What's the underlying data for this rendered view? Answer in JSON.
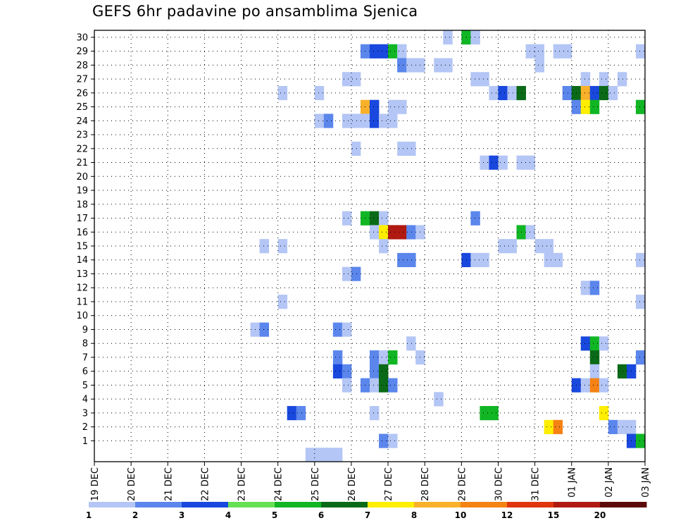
{
  "chart_data": {
    "type": "heatmap",
    "title": "GEFS 6hr padavine po ansamblima Sjenica",
    "xlabel": "",
    "ylabel": "",
    "ylim": [
      0.5,
      30.5
    ],
    "y_ticks": [
      1,
      2,
      3,
      4,
      5,
      6,
      7,
      8,
      9,
      10,
      11,
      12,
      13,
      14,
      15,
      16,
      17,
      18,
      19,
      20,
      21,
      22,
      23,
      24,
      25,
      26,
      27,
      28,
      29,
      30
    ],
    "x_ticks": [
      "19 DEC",
      "20 DEC",
      "21 DEC",
      "22 DEC",
      "23 DEC",
      "24 DEC",
      "25 DEC",
      "26 DEC",
      "27 DEC",
      "28 DEC",
      "29 DEC",
      "30 DEC",
      "31 DEC",
      "01 JAN",
      "02 JAN",
      "03 JAN"
    ],
    "time_steps": 60,
    "steps_per_day": 4,
    "grid": "dotted",
    "colorbar": {
      "labels": [
        "1",
        "2",
        "3",
        "4",
        "5",
        "6",
        "7",
        "8",
        "10",
        "12",
        "15",
        "20"
      ],
      "colors": [
        "#b4c6f5",
        "#5b86ec",
        "#1948de",
        "#68e056",
        "#10b624",
        "#0b6a17",
        "#ffee00",
        "#f9b12a",
        "#f58214",
        "#e0350f",
        "#b01a10",
        "#5c0909"
      ]
    },
    "cells": [
      {
        "member": 30,
        "step": 38,
        "level": 1
      },
      {
        "member": 30,
        "step": 40,
        "level": 5
      },
      {
        "member": 30,
        "step": 41,
        "level": 1
      },
      {
        "member": 29,
        "step": 29,
        "level": 2
      },
      {
        "member": 29,
        "step": 30,
        "level": 3
      },
      {
        "member": 29,
        "step": 31,
        "level": 3
      },
      {
        "member": 29,
        "step": 32,
        "level": 5
      },
      {
        "member": 29,
        "step": 33,
        "level": 1
      },
      {
        "member": 29,
        "step": 47,
        "level": 1
      },
      {
        "member": 29,
        "step": 48,
        "level": 1
      },
      {
        "member": 29,
        "step": 50,
        "level": 1
      },
      {
        "member": 29,
        "step": 51,
        "level": 1
      },
      {
        "member": 29,
        "step": 59,
        "level": 1
      },
      {
        "member": 28,
        "step": 33,
        "level": 2
      },
      {
        "member": 28,
        "step": 34,
        "level": 1
      },
      {
        "member": 28,
        "step": 35,
        "level": 1
      },
      {
        "member": 28,
        "step": 37,
        "level": 1
      },
      {
        "member": 28,
        "step": 38,
        "level": 1
      },
      {
        "member": 28,
        "step": 48,
        "level": 1
      },
      {
        "member": 27,
        "step": 27,
        "level": 1
      },
      {
        "member": 27,
        "step": 28,
        "level": 1
      },
      {
        "member": 27,
        "step": 41,
        "level": 1
      },
      {
        "member": 27,
        "step": 42,
        "level": 1
      },
      {
        "member": 27,
        "step": 53,
        "level": 1
      },
      {
        "member": 27,
        "step": 55,
        "level": 1
      },
      {
        "member": 27,
        "step": 57,
        "level": 1
      },
      {
        "member": 26,
        "step": 20,
        "level": 1
      },
      {
        "member": 26,
        "step": 24,
        "level": 1
      },
      {
        "member": 26,
        "step": 43,
        "level": 1
      },
      {
        "member": 26,
        "step": 44,
        "level": 3
      },
      {
        "member": 26,
        "step": 45,
        "level": 1
      },
      {
        "member": 26,
        "step": 46,
        "level": 6
      },
      {
        "member": 26,
        "step": 51,
        "level": 2
      },
      {
        "member": 26,
        "step": 52,
        "level": 6
      },
      {
        "member": 26,
        "step": 53,
        "level": 8
      },
      {
        "member": 26,
        "step": 54,
        "level": 3
      },
      {
        "member": 26,
        "step": 55,
        "level": 6
      },
      {
        "member": 26,
        "step": 56,
        "level": 1
      },
      {
        "member": 25,
        "step": 29,
        "level": 8
      },
      {
        "member": 25,
        "step": 30,
        "level": 3
      },
      {
        "member": 25,
        "step": 32,
        "level": 1
      },
      {
        "member": 25,
        "step": 33,
        "level": 1
      },
      {
        "member": 25,
        "step": 52,
        "level": 2
      },
      {
        "member": 25,
        "step": 53,
        "level": 7
      },
      {
        "member": 25,
        "step": 54,
        "level": 5
      },
      {
        "member": 25,
        "step": 59,
        "level": 5
      },
      {
        "member": 24,
        "step": 24,
        "level": 1
      },
      {
        "member": 24,
        "step": 25,
        "level": 2
      },
      {
        "member": 24,
        "step": 27,
        "level": 1
      },
      {
        "member": 24,
        "step": 28,
        "level": 1
      },
      {
        "member": 24,
        "step": 29,
        "level": 1
      },
      {
        "member": 24,
        "step": 30,
        "level": 3
      },
      {
        "member": 24,
        "step": 31,
        "level": 1
      },
      {
        "member": 24,
        "step": 32,
        "level": 1
      },
      {
        "member": 22,
        "step": 28,
        "level": 1
      },
      {
        "member": 22,
        "step": 33,
        "level": 1
      },
      {
        "member": 22,
        "step": 34,
        "level": 1
      },
      {
        "member": 21,
        "step": 42,
        "level": 1
      },
      {
        "member": 21,
        "step": 43,
        "level": 3
      },
      {
        "member": 21,
        "step": 44,
        "level": 1
      },
      {
        "member": 21,
        "step": 46,
        "level": 1
      },
      {
        "member": 21,
        "step": 47,
        "level": 1
      },
      {
        "member": 17,
        "step": 27,
        "level": 1
      },
      {
        "member": 17,
        "step": 29,
        "level": 5
      },
      {
        "member": 17,
        "step": 30,
        "level": 6
      },
      {
        "member": 17,
        "step": 31,
        "level": 1
      },
      {
        "member": 17,
        "step": 41,
        "level": 2
      },
      {
        "member": 16,
        "step": 30,
        "level": 1
      },
      {
        "member": 16,
        "step": 31,
        "level": 7
      },
      {
        "member": 16,
        "step": 32,
        "level": 11
      },
      {
        "member": 16,
        "step": 33,
        "level": 11
      },
      {
        "member": 16,
        "step": 34,
        "level": 2
      },
      {
        "member": 16,
        "step": 35,
        "level": 1
      },
      {
        "member": 16,
        "step": 46,
        "level": 5
      },
      {
        "member": 16,
        "step": 47,
        "level": 1
      },
      {
        "member": 15,
        "step": 18,
        "level": 1
      },
      {
        "member": 15,
        "step": 20,
        "level": 1
      },
      {
        "member": 15,
        "step": 31,
        "level": 1
      },
      {
        "member": 15,
        "step": 44,
        "level": 1
      },
      {
        "member": 15,
        "step": 45,
        "level": 1
      },
      {
        "member": 15,
        "step": 48,
        "level": 1
      },
      {
        "member": 15,
        "step": 49,
        "level": 1
      },
      {
        "member": 14,
        "step": 33,
        "level": 2
      },
      {
        "member": 14,
        "step": 34,
        "level": 2
      },
      {
        "member": 14,
        "step": 40,
        "level": 3
      },
      {
        "member": 14,
        "step": 41,
        "level": 1
      },
      {
        "member": 14,
        "step": 42,
        "level": 1
      },
      {
        "member": 14,
        "step": 49,
        "level": 1
      },
      {
        "member": 14,
        "step": 50,
        "level": 1
      },
      {
        "member": 14,
        "step": 59,
        "level": 1
      },
      {
        "member": 13,
        "step": 27,
        "level": 1
      },
      {
        "member": 13,
        "step": 28,
        "level": 2
      },
      {
        "member": 12,
        "step": 53,
        "level": 1
      },
      {
        "member": 12,
        "step": 54,
        "level": 2
      },
      {
        "member": 11,
        "step": 20,
        "level": 1
      },
      {
        "member": 11,
        "step": 59,
        "level": 1
      },
      {
        "member": 9,
        "step": 17,
        "level": 1
      },
      {
        "member": 9,
        "step": 18,
        "level": 2
      },
      {
        "member": 9,
        "step": 26,
        "level": 2
      },
      {
        "member": 9,
        "step": 27,
        "level": 1
      },
      {
        "member": 8,
        "step": 34,
        "level": 1
      },
      {
        "member": 8,
        "step": 53,
        "level": 3
      },
      {
        "member": 8,
        "step": 54,
        "level": 5
      },
      {
        "member": 8,
        "step": 55,
        "level": 1
      },
      {
        "member": 7,
        "step": 26,
        "level": 2
      },
      {
        "member": 7,
        "step": 30,
        "level": 2
      },
      {
        "member": 7,
        "step": 31,
        "level": 1
      },
      {
        "member": 7,
        "step": 32,
        "level": 5
      },
      {
        "member": 7,
        "step": 35,
        "level": 1
      },
      {
        "member": 7,
        "step": 54,
        "level": 6
      },
      {
        "member": 7,
        "step": 59,
        "level": 2
      },
      {
        "member": 6,
        "step": 26,
        "level": 3
      },
      {
        "member": 6,
        "step": 27,
        "level": 2
      },
      {
        "member": 6,
        "step": 30,
        "level": 2
      },
      {
        "member": 6,
        "step": 31,
        "level": 6
      },
      {
        "member": 6,
        "step": 54,
        "level": 1
      },
      {
        "member": 6,
        "step": 57,
        "level": 6
      },
      {
        "member": 6,
        "step": 58,
        "level": 3
      },
      {
        "member": 5,
        "step": 27,
        "level": 1
      },
      {
        "member": 5,
        "step": 29,
        "level": 2
      },
      {
        "member": 5,
        "step": 30,
        "level": 1
      },
      {
        "member": 5,
        "step": 31,
        "level": 6
      },
      {
        "member": 5,
        "step": 32,
        "level": 2
      },
      {
        "member": 5,
        "step": 52,
        "level": 3
      },
      {
        "member": 5,
        "step": 53,
        "level": 1
      },
      {
        "member": 5,
        "step": 54,
        "level": 9
      },
      {
        "member": 5,
        "step": 55,
        "level": 1
      },
      {
        "member": 4,
        "step": 37,
        "level": 1
      },
      {
        "member": 3,
        "step": 21,
        "level": 3
      },
      {
        "member": 3,
        "step": 22,
        "level": 2
      },
      {
        "member": 3,
        "step": 30,
        "level": 1
      },
      {
        "member": 3,
        "step": 42,
        "level": 5
      },
      {
        "member": 3,
        "step": 43,
        "level": 5
      },
      {
        "member": 3,
        "step": 55,
        "level": 7
      },
      {
        "member": 2,
        "step": 49,
        "level": 7
      },
      {
        "member": 2,
        "step": 50,
        "level": 9
      },
      {
        "member": 2,
        "step": 56,
        "level": 2
      },
      {
        "member": 2,
        "step": 57,
        "level": 1
      },
      {
        "member": 2,
        "step": 58,
        "level": 1
      },
      {
        "member": 1,
        "step": 31,
        "level": 2
      },
      {
        "member": 1,
        "step": 32,
        "level": 1
      },
      {
        "member": 1,
        "step": 58,
        "level": 3
      },
      {
        "member": 1,
        "step": 59,
        "level": 5
      },
      {
        "member": 0,
        "step": 23,
        "level": 1
      },
      {
        "member": 0,
        "step": 24,
        "level": 1
      },
      {
        "member": 0,
        "step": 25,
        "level": 1
      },
      {
        "member": 0,
        "step": 26,
        "level": 1
      }
    ]
  }
}
